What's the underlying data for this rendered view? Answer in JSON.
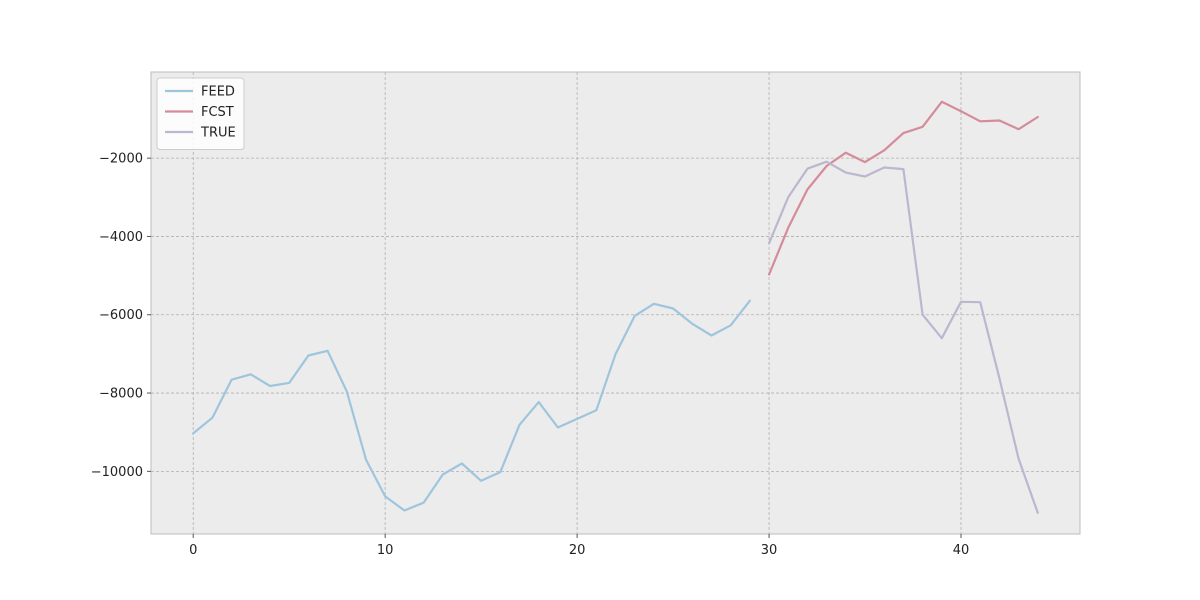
{
  "chart_data": {
    "type": "line",
    "x_ticks": [
      0,
      10,
      20,
      30,
      40
    ],
    "y_ticks": [
      -2000,
      -4000,
      -6000,
      -8000,
      -10000
    ],
    "y_tick_labels": [
      "−2000",
      "−4000",
      "−6000",
      "−8000",
      "−10000"
    ],
    "xlim": [
      -2.2,
      46.2
    ],
    "ylim": [
      -11600,
      200
    ],
    "grid": true,
    "legend_position": "top-left",
    "series": [
      {
        "name": "FEED",
        "color": "#9fc5dd",
        "x": [
          0,
          1,
          2,
          3,
          4,
          5,
          6,
          7,
          8,
          9,
          10,
          11,
          12,
          13,
          14,
          15,
          16,
          17,
          18,
          19,
          20,
          21,
          22,
          23,
          24,
          25,
          26,
          27,
          28,
          29
        ],
        "values": [
          -9030,
          -8630,
          -7660,
          -7520,
          -7820,
          -7740,
          -7040,
          -6920,
          -7960,
          -9700,
          -10640,
          -11000,
          -10800,
          -10080,
          -9800,
          -10240,
          -10020,
          -8810,
          -8230,
          -8880,
          -8660,
          -8440,
          -7010,
          -6030,
          -5720,
          -5840,
          -6230,
          -6530,
          -6270,
          -5640
        ]
      },
      {
        "name": "FCST",
        "color": "#d58c9a",
        "x": [
          30,
          31,
          32,
          33,
          34,
          35,
          36,
          37,
          38,
          39,
          40,
          41,
          42,
          43,
          44
        ],
        "values": [
          -4970,
          -3780,
          -2800,
          -2200,
          -1860,
          -2100,
          -1800,
          -1360,
          -1200,
          -560,
          -800,
          -1060,
          -1040,
          -1260,
          -950
        ]
      },
      {
        "name": "TRUE",
        "color": "#bcb6d0",
        "x": [
          30,
          31,
          32,
          33,
          34,
          35,
          36,
          37,
          38,
          39,
          40,
          41,
          42,
          43,
          44
        ],
        "values": [
          -4170,
          -3000,
          -2270,
          -2090,
          -2370,
          -2470,
          -2240,
          -2280,
          -6000,
          -6600,
          -5670,
          -5680,
          -7620,
          -9680,
          -11060
        ]
      }
    ]
  }
}
